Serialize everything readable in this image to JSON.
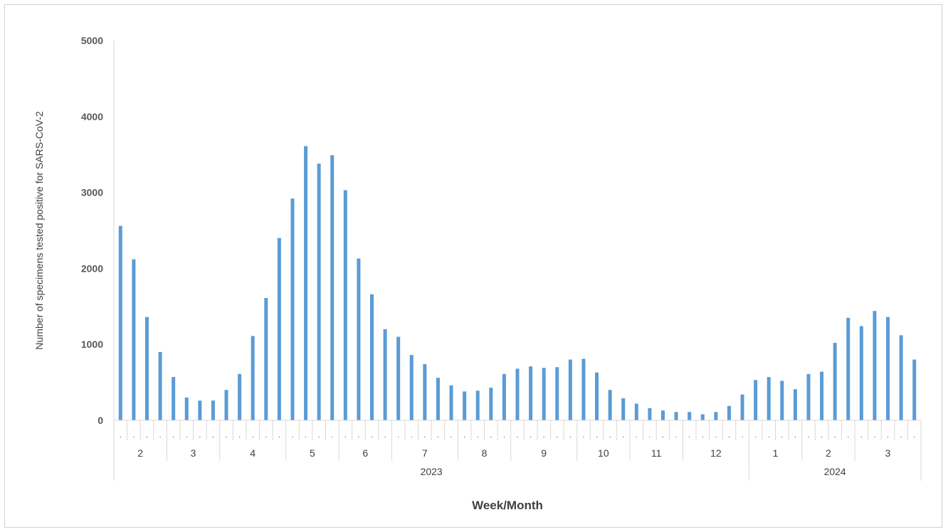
{
  "chart_data": {
    "type": "bar",
    "xlabel": "Week/Month",
    "ylabel": "Number of specimens tested positive for SARS-CoV-2",
    "ylim": [
      0,
      5000
    ],
    "yticks": [
      "0",
      "1000",
      "2000",
      "3000",
      "4000",
      "5000"
    ],
    "grid": false,
    "bar_color": "#5b9bd5",
    "week_tick_label": ".",
    "values": [
      2560,
      2120,
      1360,
      900,
      570,
      300,
      260,
      260,
      400,
      610,
      1110,
      1610,
      2400,
      2920,
      3610,
      3380,
      3490,
      3030,
      2130,
      1660,
      1200,
      1100,
      860,
      740,
      560,
      460,
      380,
      390,
      430,
      610,
      680,
      710,
      690,
      700,
      800,
      810,
      630,
      400,
      290,
      220,
      160,
      130,
      110,
      110,
      80,
      110,
      190,
      340,
      530,
      570,
      520,
      410,
      610,
      640,
      1020,
      1350,
      1240,
      1440,
      1360,
      1120,
      800
    ],
    "months": [
      {
        "label": "2",
        "weeks": 4
      },
      {
        "label": "3",
        "weeks": 4
      },
      {
        "label": "4",
        "weeks": 5
      },
      {
        "label": "5",
        "weeks": 4
      },
      {
        "label": "6",
        "weeks": 4
      },
      {
        "label": "7",
        "weeks": 5
      },
      {
        "label": "8",
        "weeks": 4
      },
      {
        "label": "9",
        "weeks": 5
      },
      {
        "label": "10",
        "weeks": 4
      },
      {
        "label": "11",
        "weeks": 4
      },
      {
        "label": "12",
        "weeks": 5
      },
      {
        "label": "1",
        "weeks": 4
      },
      {
        "label": "2",
        "weeks": 4
      },
      {
        "label": "3",
        "weeks": 5
      }
    ],
    "years": [
      {
        "label": "2023",
        "months": 11
      },
      {
        "label": "2024",
        "months": 3
      }
    ]
  }
}
